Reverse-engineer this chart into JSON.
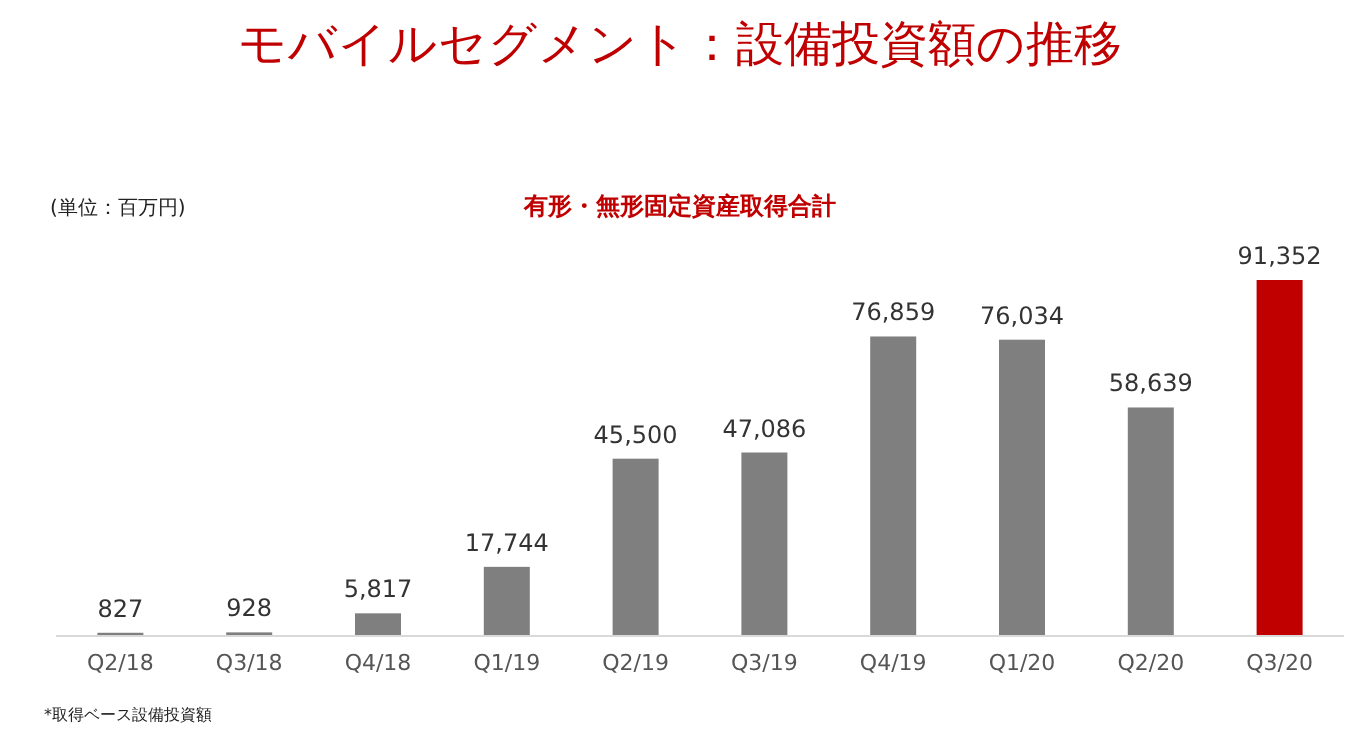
{
  "chart_data": {
    "type": "bar",
    "title": "モバイルセグメント：設備投資額の推移",
    "subtitle": "有形・無形固定資産取得合計",
    "categories": [
      "Q2/18",
      "Q3/18",
      "Q4/18",
      "Q1/19",
      "Q2/19",
      "Q3/19",
      "Q4/19",
      "Q1/20",
      "Q2/20",
      "Q3/20"
    ],
    "values": [
      827,
      928,
      5817,
      17744,
      45500,
      47086,
      76859,
      76034,
      58639,
      91352
    ],
    "value_labels": [
      "827",
      "928",
      "5,817",
      "17,744",
      "45,500",
      "47,086",
      "76,859",
      "76,034",
      "58,639",
      "91,352"
    ],
    "colors": [
      "#7f7f7f",
      "#7f7f7f",
      "#7f7f7f",
      "#7f7f7f",
      "#7f7f7f",
      "#7f7f7f",
      "#7f7f7f",
      "#7f7f7f",
      "#7f7f7f",
      "#c00000"
    ],
    "annotations": [
      "(単位：百万円)",
      "*取得ベース設備投資額"
    ]
  }
}
